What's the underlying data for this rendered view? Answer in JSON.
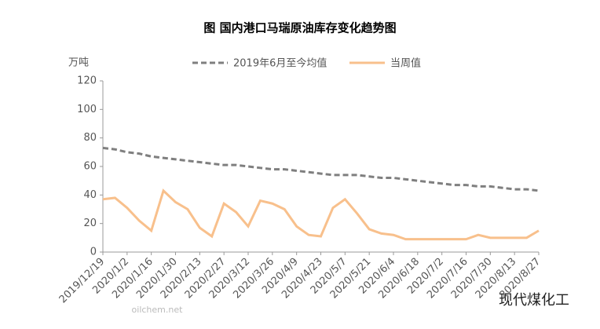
{
  "chart_data": {
    "type": "line",
    "title": "图  国内港口马瑞原油库存变化趋势图",
    "y_unit": "万吨",
    "categories": [
      "2019/12/19",
      null,
      "2020/1/2",
      null,
      "2020/1/16",
      null,
      "2020/1/30",
      null,
      "2020/2/13",
      null,
      "2020/2/27",
      null,
      "2020/3/12",
      null,
      "2020/3/26",
      null,
      "2020/4/9",
      null,
      "2020/4/23",
      null,
      "2020/5/7",
      null,
      "2020/5/21",
      null,
      "2020/6/4",
      null,
      "2020/6/18",
      null,
      "2020/7/2",
      null,
      "2020/7/16",
      null,
      "2020/7/30",
      null,
      "2020/8/13",
      null,
      "2020/8/27"
    ],
    "series": [
      {
        "name": "2019年6月至今均值",
        "color": "#7f7f7f",
        "dashed": true,
        "values": [
          73,
          72,
          70,
          69,
          67,
          66,
          65,
          64,
          63,
          62,
          61,
          61,
          60,
          59,
          58,
          58,
          57,
          56,
          55,
          54,
          54,
          54,
          53,
          52,
          52,
          51,
          50,
          49,
          48,
          47,
          47,
          46,
          46,
          45,
          44,
          44,
          43
        ]
      },
      {
        "name": "当周值",
        "color": "#f8c08c",
        "dashed": false,
        "values": [
          37,
          38,
          31,
          22,
          15,
          43,
          35,
          30,
          17,
          11,
          34,
          28,
          18,
          36,
          34,
          30,
          18,
          12,
          11,
          31,
          37,
          27,
          16,
          13,
          12,
          9,
          9,
          9,
          9,
          9,
          9,
          12,
          10,
          10,
          10,
          10,
          15
        ]
      }
    ],
    "ylim": [
      0,
      120
    ],
    "yticks": [
      0,
      20,
      40,
      60,
      80,
      100,
      120
    ],
    "grid": false,
    "legend": "top",
    "watermarks": [
      "oilchem.net",
      "现代煤化工"
    ]
  }
}
